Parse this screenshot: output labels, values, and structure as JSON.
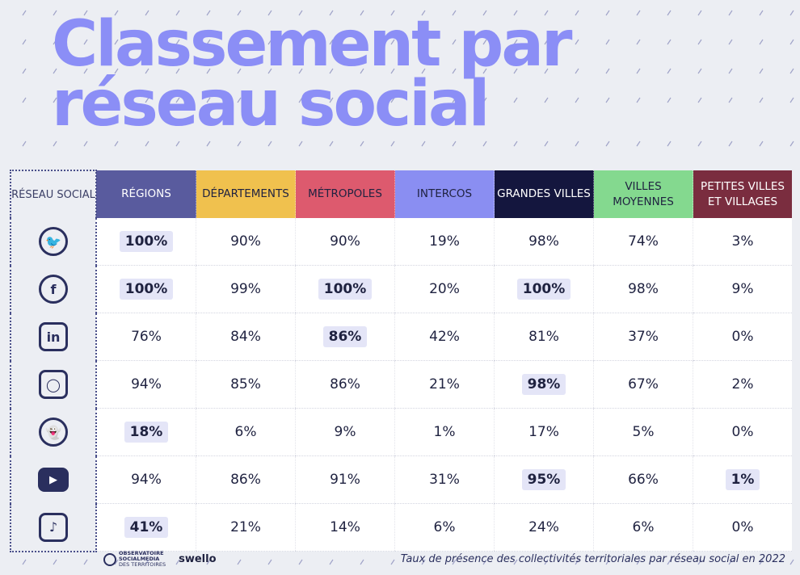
{
  "title": {
    "line1": "Classement par",
    "line2": "réseau social"
  },
  "colors": {
    "title": "#8b8ef6",
    "background": "#eceef3",
    "highlight": "#e4e5f7",
    "regions": "#595b9e",
    "departements": "#f0c14e",
    "metropoles": "#dd5a6e",
    "intercos": "#8a8ef2",
    "grandes_villes": "#14163e",
    "villes_moyennes": "#84d98f",
    "petites_villes": "#7a2d3f"
  },
  "chart_data": {
    "type": "table",
    "corner_label": "RÉSEAU SOCIAL",
    "columns": [
      {
        "label": "RÉGIONS",
        "bg": "#595b9e",
        "fg": "#ffffff"
      },
      {
        "label": "DÉPARTEMENTS",
        "bg": "#f0c14e",
        "fg": "#1f2240"
      },
      {
        "label": "MÉTROPOLES",
        "bg": "#dd5a6e",
        "fg": "#1f2240"
      },
      {
        "label": "INTERCOS",
        "bg": "#8a8ef2",
        "fg": "#1f2240"
      },
      {
        "label": "GRANDES VILLES",
        "bg": "#14163e",
        "fg": "#ffffff"
      },
      {
        "label": "VILLES MOYENNES",
        "bg": "#84d98f",
        "fg": "#1f2240"
      },
      {
        "label": "PETITES VILLES ET VILLAGES",
        "bg": "#7a2d3f",
        "fg": "#ffffff"
      }
    ],
    "rows": [
      {
        "icon": "twitter-icon",
        "values": [
          "100%",
          "90%",
          "90%",
          "19%",
          "98%",
          "74%",
          "3%"
        ],
        "highlight": [
          0
        ]
      },
      {
        "icon": "facebook-icon",
        "values": [
          "100%",
          "99%",
          "100%",
          "20%",
          "100%",
          "98%",
          "9%"
        ],
        "highlight": [
          0,
          2,
          4
        ]
      },
      {
        "icon": "linkedin-icon",
        "values": [
          "76%",
          "84%",
          "86%",
          "42%",
          "81%",
          "37%",
          "0%"
        ],
        "highlight": [
          2
        ]
      },
      {
        "icon": "instagram-icon",
        "values": [
          "94%",
          "85%",
          "86%",
          "21%",
          "98%",
          "67%",
          "2%"
        ],
        "highlight": [
          4
        ]
      },
      {
        "icon": "snapchat-icon",
        "values": [
          "18%",
          "6%",
          "9%",
          "1%",
          "17%",
          "5%",
          "0%"
        ],
        "highlight": [
          0
        ]
      },
      {
        "icon": "youtube-icon",
        "values": [
          "94%",
          "86%",
          "91%",
          "31%",
          "95%",
          "66%",
          "1%"
        ],
        "highlight": [
          4,
          6
        ]
      },
      {
        "icon": "tiktok-icon",
        "values": [
          "41%",
          "21%",
          "14%",
          "6%",
          "24%",
          "6%",
          "0%"
        ],
        "highlight": [
          0
        ]
      }
    ]
  },
  "footer": {
    "observatoire_line1": "OBSERVATOIRE",
    "observatoire_line2": "SOCIALMEDIA",
    "observatoire_line3": "DES TERRITOIRES",
    "swello": "swello",
    "caption": "Taux de présence des collectivités territoriales par réseau social en 2022"
  }
}
